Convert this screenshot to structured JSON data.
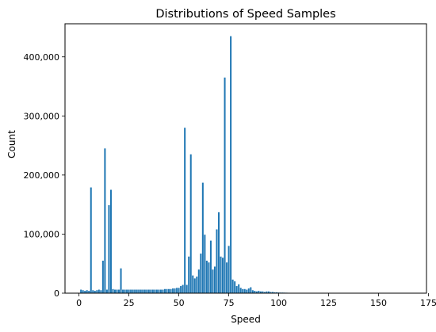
{
  "chart_data": {
    "type": "bar",
    "title": "Distributions of Speed Samples",
    "xlabel": "Speed",
    "ylabel": "Count",
    "xlim": [
      -7,
      174
    ],
    "ylim": [
      0,
      456000
    ],
    "x_ticks": [
      0,
      25,
      50,
      75,
      100,
      125,
      150,
      175
    ],
    "x_tick_labels": [
      "0",
      "25",
      "50",
      "75",
      "100",
      "125",
      "150",
      "175"
    ],
    "y_ticks": [
      0,
      100000,
      200000,
      300000,
      400000
    ],
    "y_tick_labels": [
      "0",
      "100,000",
      "200,000",
      "300,000",
      "400,000"
    ],
    "bar_color": "#1f77b4",
    "grid": false,
    "legend": "none",
    "x": [
      1,
      2,
      3,
      4,
      5,
      6,
      7,
      8,
      9,
      10,
      11,
      12,
      13,
      14,
      15,
      16,
      17,
      18,
      19,
      20,
      21,
      22,
      23,
      24,
      25,
      26,
      27,
      28,
      29,
      30,
      31,
      32,
      33,
      34,
      35,
      36,
      37,
      38,
      39,
      40,
      41,
      42,
      43,
      44,
      45,
      46,
      47,
      48,
      49,
      50,
      51,
      52,
      53,
      54,
      55,
      56,
      57,
      58,
      59,
      60,
      61,
      62,
      63,
      64,
      65,
      66,
      67,
      68,
      69,
      70,
      71,
      72,
      73,
      74,
      75,
      76,
      77,
      78,
      79,
      80,
      81,
      82,
      83,
      84,
      85,
      86,
      87,
      88,
      89,
      90,
      91,
      92,
      93,
      94,
      95,
      96,
      97,
      98,
      99,
      100,
      101,
      102,
      103,
      104,
      105,
      106,
      107,
      108
    ],
    "values": [
      6000,
      5000,
      4000,
      5000,
      4000,
      179000,
      5000,
      4000,
      5000,
      6000,
      5000,
      55000,
      245000,
      6000,
      149000,
      175000,
      7000,
      6000,
      6000,
      6000,
      42000,
      6000,
      6000,
      6000,
      6000,
      6000,
      6000,
      6000,
      6000,
      6000,
      6000,
      6000,
      6000,
      6000,
      6000,
      6000,
      6000,
      6000,
      6000,
      6000,
      6000,
      6000,
      7000,
      7000,
      7000,
      7000,
      8000,
      8000,
      9000,
      9000,
      12000,
      14000,
      280000,
      14000,
      62000,
      235000,
      30000,
      25000,
      28000,
      40000,
      67000,
      187000,
      99000,
      55000,
      52000,
      89000,
      40000,
      45000,
      108000,
      137000,
      62000,
      60000,
      365000,
      52000,
      80000,
      435000,
      23000,
      20000,
      12000,
      15000,
      9000,
      7000,
      7000,
      6000,
      8000,
      10000,
      5000,
      4000,
      3000,
      4000,
      3000,
      3000,
      2000,
      3000,
      3000,
      2000,
      2000,
      1500,
      1500,
      1200,
      1000,
      1000,
      900,
      800,
      700,
      600,
      500,
      400
    ],
    "bar_width": 0.8
  }
}
